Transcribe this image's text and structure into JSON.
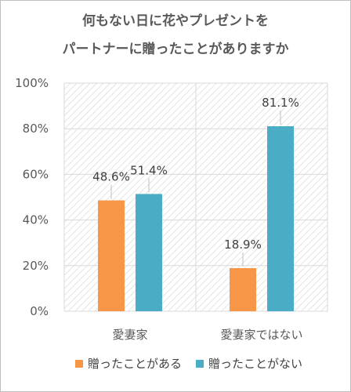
{
  "chart_data": {
    "type": "bar",
    "title_lines": [
      "何もない日に花やプレゼントを",
      "パートナーに贈ったことがありますか"
    ],
    "categories": [
      "愛妻家",
      "愛妻家ではない"
    ],
    "series": [
      {
        "name": "贈ったことがある",
        "color": "#f79646",
        "values": [
          48.6,
          18.9
        ]
      },
      {
        "name": "贈ったことがない",
        "color": "#4bacc6",
        "values": [
          51.4,
          81.1
        ]
      }
    ],
    "data_label_suffix": "%",
    "ylim": [
      0,
      100
    ],
    "yticks": [
      0,
      20,
      40,
      60,
      80,
      100
    ],
    "ytick_labels": [
      "0%",
      "20%",
      "40%",
      "60%",
      "80%",
      "100%"
    ],
    "grid": true,
    "legend": "bottom",
    "plot_background": "diagonal-hatch"
  }
}
